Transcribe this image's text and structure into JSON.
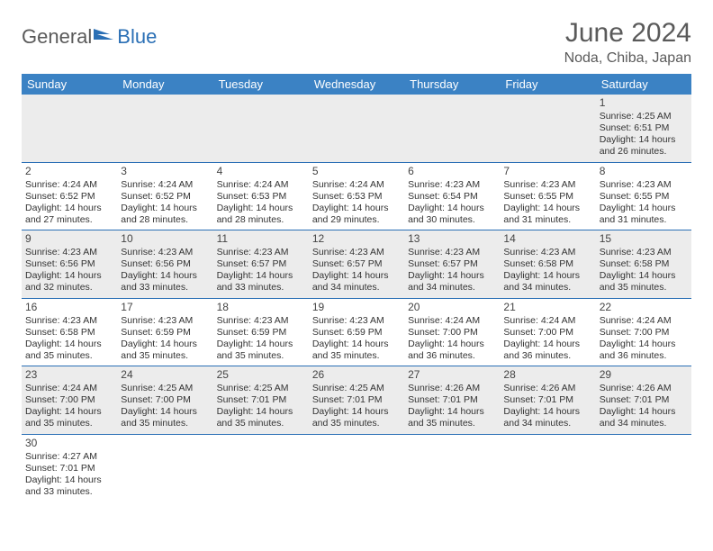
{
  "logo": {
    "text_dark": "General",
    "text_blue": "Blue",
    "dark_color": "#5a5a5a",
    "blue_color": "#2a6fb5"
  },
  "title": "June 2024",
  "location": "Noda, Chiba, Japan",
  "colors": {
    "header_bg": "#3b82c4",
    "header_text": "#ffffff",
    "row_odd_bg": "#ececec",
    "row_even_bg": "#ffffff",
    "border": "#2a6fb5"
  },
  "weekdays": [
    "Sunday",
    "Monday",
    "Tuesday",
    "Wednesday",
    "Thursday",
    "Friday",
    "Saturday"
  ],
  "first_weekday_index": 6,
  "days": [
    {
      "n": "1",
      "sunrise": "4:25 AM",
      "sunset": "6:51 PM",
      "daylight": "14 hours and 26 minutes."
    },
    {
      "n": "2",
      "sunrise": "4:24 AM",
      "sunset": "6:52 PM",
      "daylight": "14 hours and 27 minutes."
    },
    {
      "n": "3",
      "sunrise": "4:24 AM",
      "sunset": "6:52 PM",
      "daylight": "14 hours and 28 minutes."
    },
    {
      "n": "4",
      "sunrise": "4:24 AM",
      "sunset": "6:53 PM",
      "daylight": "14 hours and 28 minutes."
    },
    {
      "n": "5",
      "sunrise": "4:24 AM",
      "sunset": "6:53 PM",
      "daylight": "14 hours and 29 minutes."
    },
    {
      "n": "6",
      "sunrise": "4:23 AM",
      "sunset": "6:54 PM",
      "daylight": "14 hours and 30 minutes."
    },
    {
      "n": "7",
      "sunrise": "4:23 AM",
      "sunset": "6:55 PM",
      "daylight": "14 hours and 31 minutes."
    },
    {
      "n": "8",
      "sunrise": "4:23 AM",
      "sunset": "6:55 PM",
      "daylight": "14 hours and 31 minutes."
    },
    {
      "n": "9",
      "sunrise": "4:23 AM",
      "sunset": "6:56 PM",
      "daylight": "14 hours and 32 minutes."
    },
    {
      "n": "10",
      "sunrise": "4:23 AM",
      "sunset": "6:56 PM",
      "daylight": "14 hours and 33 minutes."
    },
    {
      "n": "11",
      "sunrise": "4:23 AM",
      "sunset": "6:57 PM",
      "daylight": "14 hours and 33 minutes."
    },
    {
      "n": "12",
      "sunrise": "4:23 AM",
      "sunset": "6:57 PM",
      "daylight": "14 hours and 34 minutes."
    },
    {
      "n": "13",
      "sunrise": "4:23 AM",
      "sunset": "6:57 PM",
      "daylight": "14 hours and 34 minutes."
    },
    {
      "n": "14",
      "sunrise": "4:23 AM",
      "sunset": "6:58 PM",
      "daylight": "14 hours and 34 minutes."
    },
    {
      "n": "15",
      "sunrise": "4:23 AM",
      "sunset": "6:58 PM",
      "daylight": "14 hours and 35 minutes."
    },
    {
      "n": "16",
      "sunrise": "4:23 AM",
      "sunset": "6:58 PM",
      "daylight": "14 hours and 35 minutes."
    },
    {
      "n": "17",
      "sunrise": "4:23 AM",
      "sunset": "6:59 PM",
      "daylight": "14 hours and 35 minutes."
    },
    {
      "n": "18",
      "sunrise": "4:23 AM",
      "sunset": "6:59 PM",
      "daylight": "14 hours and 35 minutes."
    },
    {
      "n": "19",
      "sunrise": "4:23 AM",
      "sunset": "6:59 PM",
      "daylight": "14 hours and 35 minutes."
    },
    {
      "n": "20",
      "sunrise": "4:24 AM",
      "sunset": "7:00 PM",
      "daylight": "14 hours and 36 minutes."
    },
    {
      "n": "21",
      "sunrise": "4:24 AM",
      "sunset": "7:00 PM",
      "daylight": "14 hours and 36 minutes."
    },
    {
      "n": "22",
      "sunrise": "4:24 AM",
      "sunset": "7:00 PM",
      "daylight": "14 hours and 36 minutes."
    },
    {
      "n": "23",
      "sunrise": "4:24 AM",
      "sunset": "7:00 PM",
      "daylight": "14 hours and 35 minutes."
    },
    {
      "n": "24",
      "sunrise": "4:25 AM",
      "sunset": "7:00 PM",
      "daylight": "14 hours and 35 minutes."
    },
    {
      "n": "25",
      "sunrise": "4:25 AM",
      "sunset": "7:01 PM",
      "daylight": "14 hours and 35 minutes."
    },
    {
      "n": "26",
      "sunrise": "4:25 AM",
      "sunset": "7:01 PM",
      "daylight": "14 hours and 35 minutes."
    },
    {
      "n": "27",
      "sunrise": "4:26 AM",
      "sunset": "7:01 PM",
      "daylight": "14 hours and 35 minutes."
    },
    {
      "n": "28",
      "sunrise": "4:26 AM",
      "sunset": "7:01 PM",
      "daylight": "14 hours and 34 minutes."
    },
    {
      "n": "29",
      "sunrise": "4:26 AM",
      "sunset": "7:01 PM",
      "daylight": "14 hours and 34 minutes."
    },
    {
      "n": "30",
      "sunrise": "4:27 AM",
      "sunset": "7:01 PM",
      "daylight": "14 hours and 33 minutes."
    }
  ],
  "labels": {
    "sunrise": "Sunrise:",
    "sunset": "Sunset:",
    "daylight": "Daylight:"
  }
}
